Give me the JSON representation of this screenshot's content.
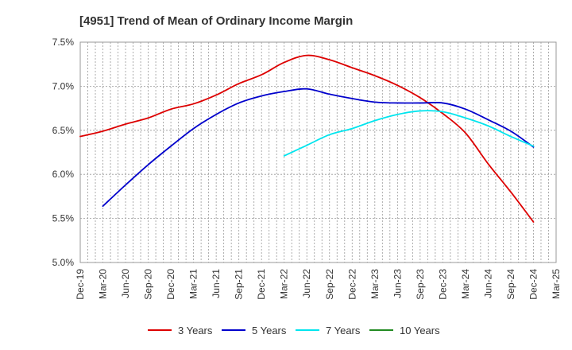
{
  "chart_data": {
    "type": "line",
    "title": "[4951]  Trend of Mean of Ordinary Income Margin",
    "xlabel": "",
    "ylabel": "",
    "ylim": [
      5.0,
      7.5
    ],
    "y_ticks": [
      "7.5%",
      "7.0%",
      "6.5%",
      "6.0%",
      "5.5%",
      "5.0%"
    ],
    "y_tick_values": [
      7.5,
      7.0,
      6.5,
      6.0,
      5.5,
      5.0
    ],
    "categories": [
      "Dec-19",
      "Mar-20",
      "Jun-20",
      "Sep-20",
      "Dec-20",
      "Mar-21",
      "Jun-21",
      "Sep-21",
      "Dec-21",
      "Mar-22",
      "Jun-22",
      "Sep-22",
      "Dec-22",
      "Mar-23",
      "Jun-23",
      "Sep-23",
      "Dec-23",
      "Mar-24",
      "Jun-24",
      "Sep-24",
      "Dec-24",
      "Mar-25"
    ],
    "grid": true,
    "legend_position": "bottom",
    "series": [
      {
        "name": "3 Years",
        "color": "#dd0000",
        "values": [
          6.43,
          6.49,
          6.57,
          6.64,
          6.74,
          6.8,
          6.9,
          7.03,
          7.13,
          7.27,
          7.35,
          7.3,
          7.21,
          7.12,
          7.01,
          6.87,
          6.69,
          6.47,
          6.12,
          5.8,
          5.46,
          null
        ]
      },
      {
        "name": "5 Years",
        "color": "#0000cc",
        "values": [
          null,
          5.64,
          5.88,
          6.11,
          6.32,
          6.52,
          6.68,
          6.81,
          6.89,
          6.94,
          6.97,
          6.91,
          6.86,
          6.82,
          6.81,
          6.81,
          6.81,
          6.74,
          6.62,
          6.49,
          6.31,
          null
        ]
      },
      {
        "name": "7 Years",
        "color": "#00e5ee",
        "values": [
          null,
          null,
          null,
          null,
          null,
          null,
          null,
          null,
          null,
          6.21,
          6.33,
          6.45,
          6.52,
          6.61,
          6.68,
          6.72,
          6.71,
          6.64,
          6.55,
          6.43,
          6.32,
          null
        ]
      },
      {
        "name": "10 Years",
        "color": "#228b22",
        "values": [
          null,
          null,
          null,
          null,
          null,
          null,
          null,
          null,
          null,
          null,
          null,
          null,
          null,
          null,
          null,
          null,
          null,
          null,
          null,
          null,
          null,
          null
        ]
      }
    ]
  }
}
